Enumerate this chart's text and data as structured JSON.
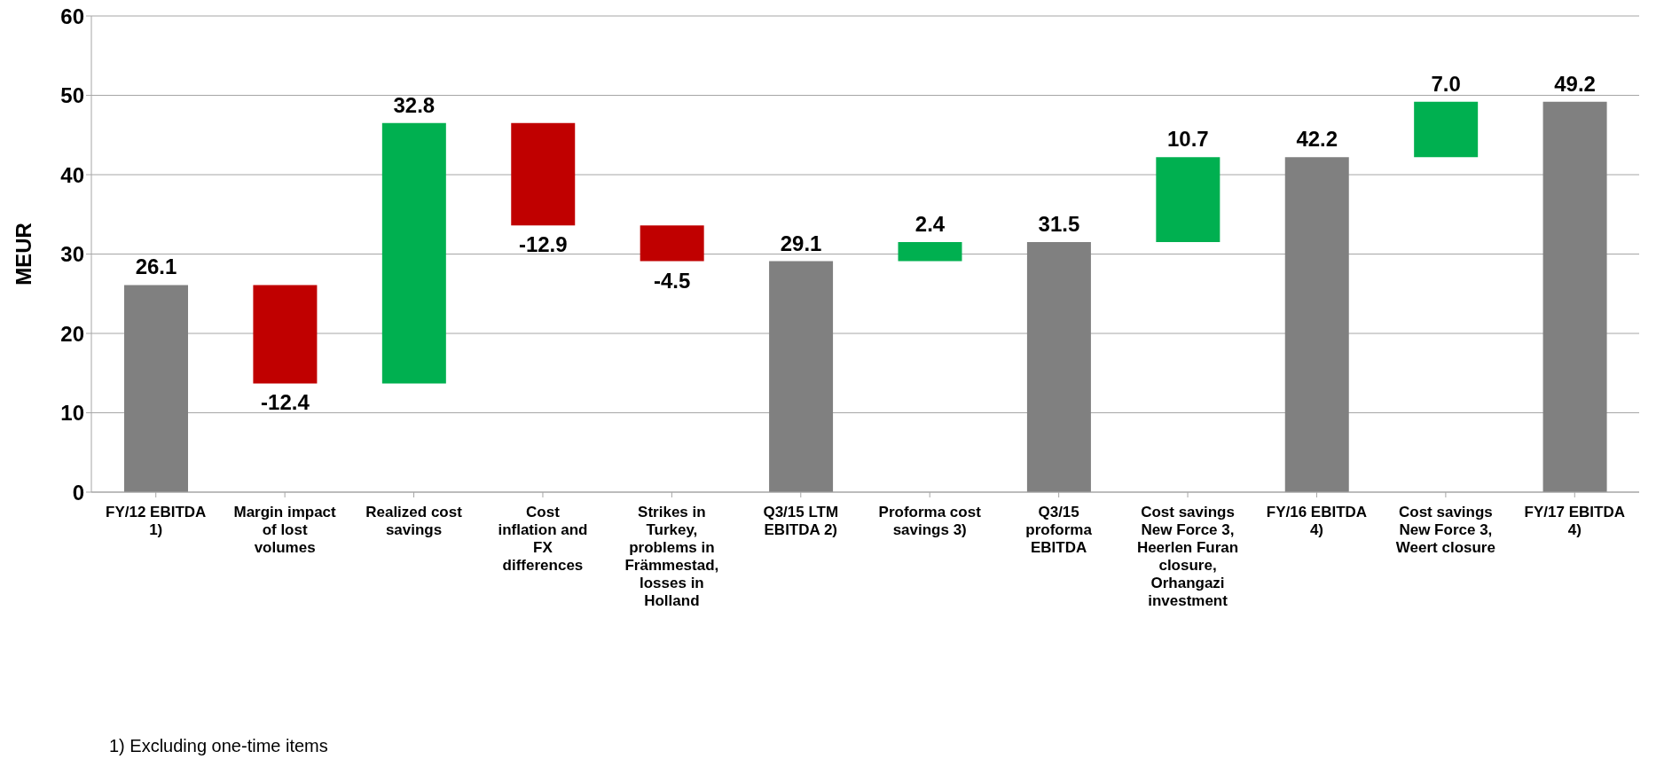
{
  "chart_data": {
    "type": "bar",
    "ylabel": "MEUR",
    "categories": [
      "FY/12 EBITDA 1)",
      "Margin impact of lost volumes",
      "Realized cost savings",
      "Cost inflation and FX differences",
      "Strikes in Turkey, problems in Främmestad, losses in Holland",
      "Q3/15 LTM EBITDA 2)",
      "Proforma cost savings 3)",
      "Q3/15 proforma EBITDA",
      "Cost savings New Force 3, Heerlen Furan closure, Orhangazi investment",
      "FY/16 EBITDA 4)",
      "Cost savings New Force 3, Weert closure",
      "FY/17 EBITDA 4)"
    ],
    "values": [
      26.1,
      -12.4,
      32.8,
      -12.9,
      -4.5,
      29.1,
      2.4,
      31.5,
      10.7,
      42.2,
      7.0,
      49.2
    ],
    "base": [
      0,
      26.1,
      13.7,
      46.5,
      33.6,
      0,
      29.1,
      0,
      31.5,
      0,
      42.2,
      0
    ],
    "colors": [
      "#808080",
      "#c00000",
      "#00b050",
      "#c00000",
      "#c00000",
      "#808080",
      "#00b050",
      "#808080",
      "#00b050",
      "#808080",
      "#00b050",
      "#808080"
    ],
    "value_labels": [
      "26.1",
      "-12.4",
      "32.8",
      "-12.9",
      "-4.5",
      "29.1",
      "2.4",
      "31.5",
      "10.7",
      "42.2",
      "7.0",
      "49.2"
    ],
    "ylim": [
      0,
      60
    ],
    "yticks": [
      0,
      10,
      20,
      30,
      40,
      50,
      60
    ],
    "grid": "y",
    "annotations": [
      "1) Excluding one-time items"
    ]
  }
}
